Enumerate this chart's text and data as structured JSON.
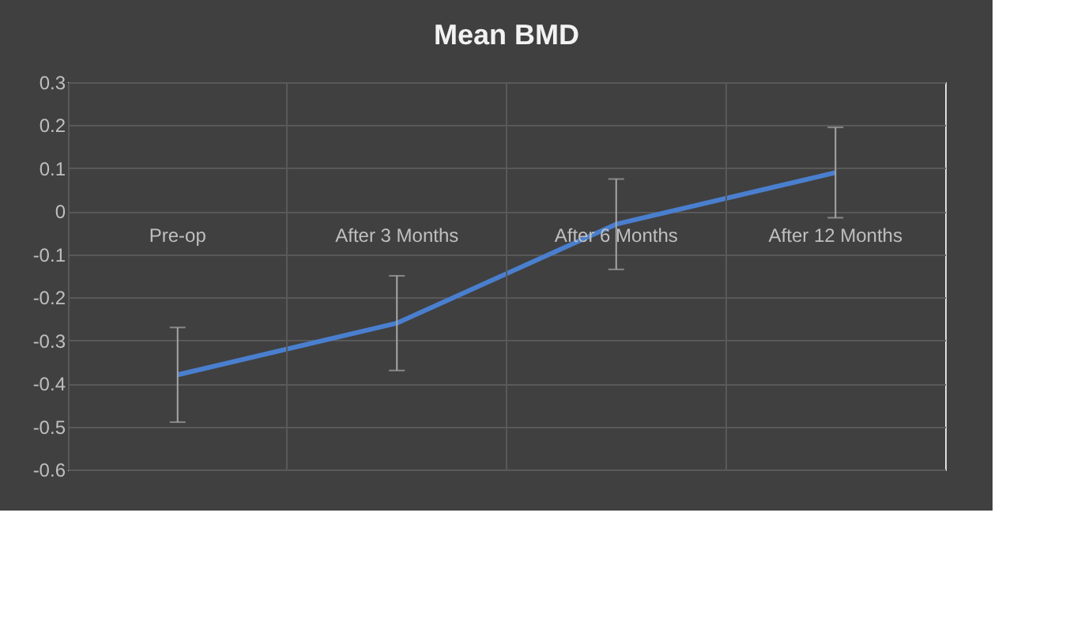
{
  "chart_data": {
    "type": "line",
    "title": "Mean BMD",
    "categories": [
      "Pre-op",
      "After 3 Months",
      "After 6 Months",
      "After 12 Months"
    ],
    "series": [
      {
        "color": "#4a7fcf",
        "values": [
          -0.38,
          -0.26,
          -0.03,
          0.09
        ],
        "errors": [
          0.11,
          0.11,
          0.105,
          0.105
        ]
      }
    ],
    "ylim": [
      -0.6,
      0.3
    ],
    "yticks": [
      -0.6,
      -0.5,
      -0.4,
      -0.3,
      -0.2,
      -0.1,
      0,
      0.1,
      0.2,
      0.3
    ],
    "grid": true,
    "marker": "none",
    "line_style": "solid"
  }
}
